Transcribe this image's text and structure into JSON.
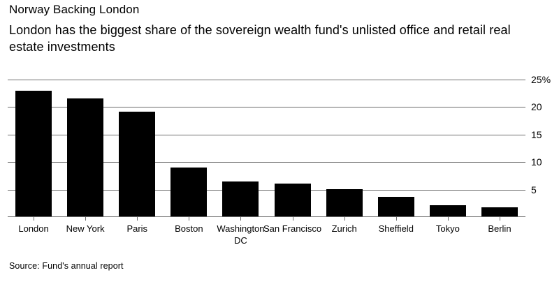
{
  "header": {
    "title": "Norway Backing London",
    "subtitle": "London has the biggest share of the sovereign wealth fund's unlisted office and retail real estate investments"
  },
  "chart_data": {
    "type": "bar",
    "title": "Norway Backing London",
    "subtitle": "London has the biggest share of the sovereign wealth fund's unlisted office and retail real estate investments",
    "categories": [
      "London",
      "New York",
      "Paris",
      "Boston",
      "Washington DC",
      "San Francisco",
      "Zurich",
      "Sheffield",
      "Tokyo",
      "Berlin"
    ],
    "values": [
      22.8,
      21.5,
      19.0,
      8.9,
      6.3,
      6.0,
      4.9,
      3.5,
      2.0,
      1.6
    ],
    "unit": "%",
    "xlabel": "",
    "ylabel": "",
    "ylim": [
      0,
      25
    ],
    "yticks": [
      5,
      10,
      15,
      20,
      25
    ],
    "ytick_labels": [
      "5",
      "10",
      "15",
      "20",
      "25%"
    ],
    "y_axis_side": "right",
    "grid": "horizontal",
    "legend": "none"
  },
  "footer": {
    "source": "Source: Fund's annual report"
  },
  "theme": {
    "background": "#ffffff",
    "text": "#000000",
    "bar": "#000000",
    "grid": "#6d6d6d"
  }
}
